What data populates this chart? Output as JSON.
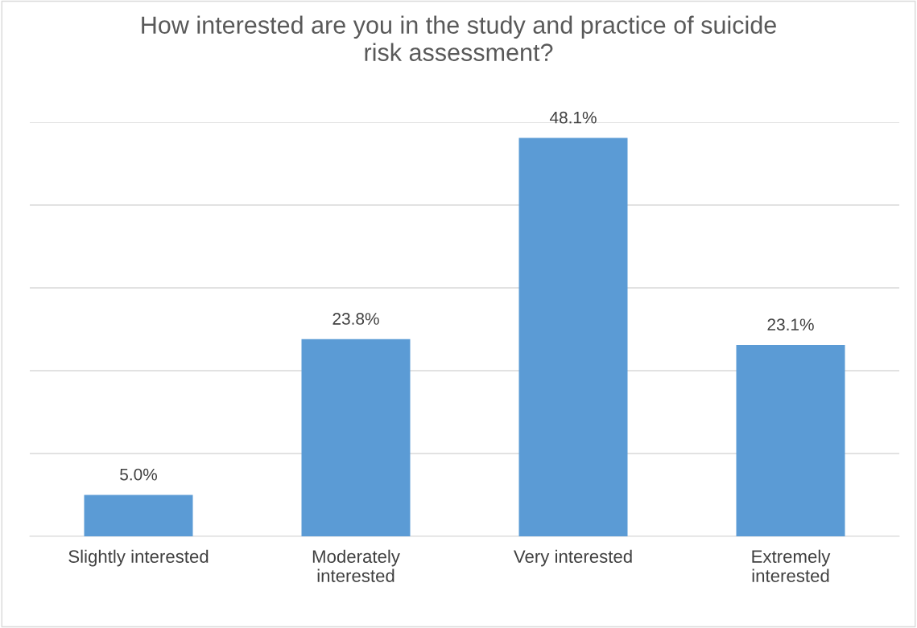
{
  "chart_data": {
    "type": "bar",
    "title": "How interested are you in the study and practice of suicide risk assessment?",
    "categories": [
      "Slightly interested",
      "Moderately interested",
      "Very interested",
      "Extremely interested"
    ],
    "values": [
      5.0,
      23.8,
      48.1,
      23.1
    ],
    "color": "#5b9bd5",
    "value_labels": [
      "5.0%",
      "23.8%",
      "48.1%",
      "23.1%"
    ],
    "ylim": [
      0,
      50
    ],
    "yticks": [
      {
        "value": 0,
        "label": null
      },
      {
        "value": 10,
        "label": null
      },
      {
        "value": 20,
        "label": null
      },
      {
        "value": 30,
        "label": null
      },
      {
        "value": 40,
        "label": null
      },
      {
        "value": 50,
        "label": null
      }
    ],
    "grid": "y",
    "tick_labels": "x"
  }
}
